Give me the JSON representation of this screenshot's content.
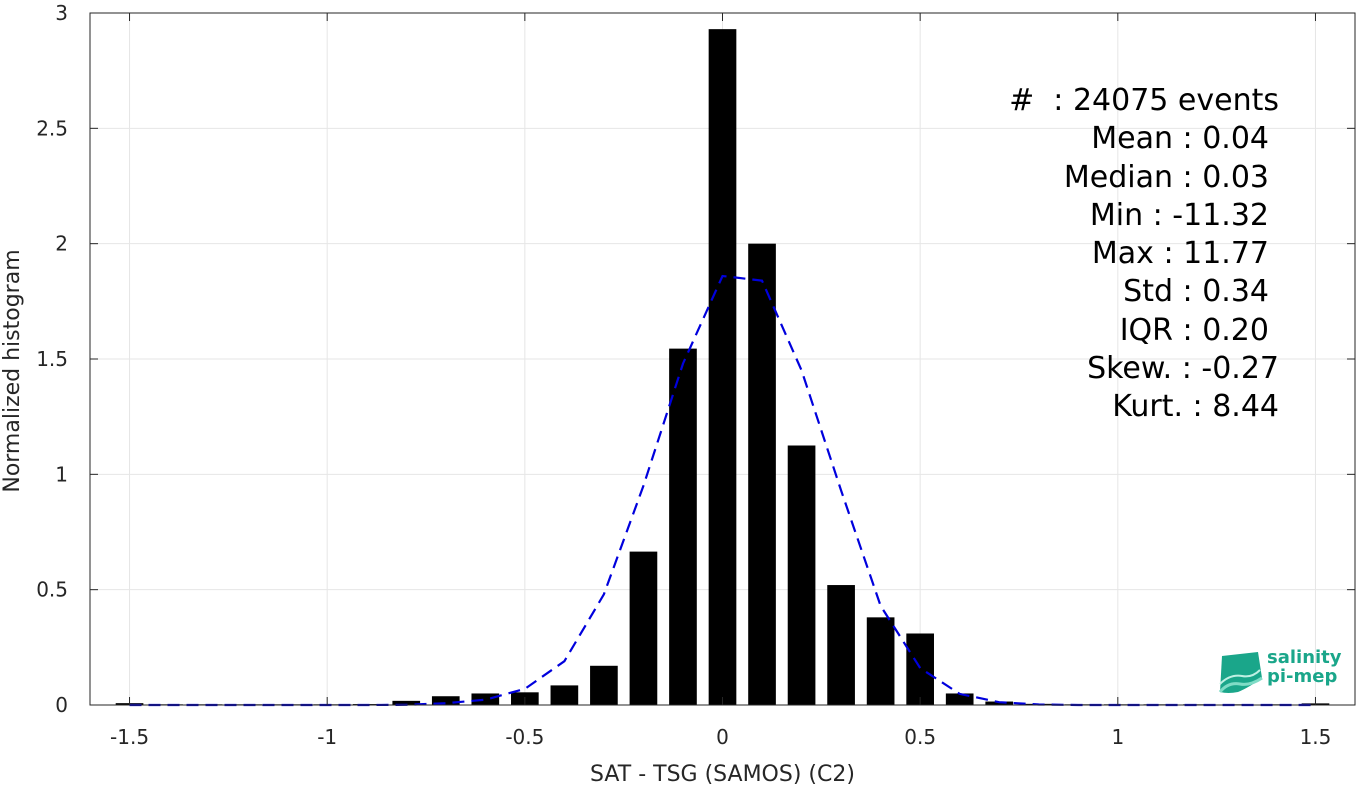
{
  "chart_data": {
    "type": "bar",
    "xlabel": "SAT - TSG (SAMOS) (C2)",
    "ylabel": "Normalized histogram",
    "xlim": [
      -1.6,
      1.6
    ],
    "ylim": [
      0,
      3
    ],
    "xticks": [
      -1.5,
      -1,
      -0.5,
      0,
      0.5,
      1,
      1.5
    ],
    "xtick_labels": [
      "-1.5",
      "-1",
      "-0.5",
      "0",
      "0.5",
      "1",
      "1.5"
    ],
    "yticks": [
      0,
      0.5,
      1,
      1.5,
      2,
      2.5,
      3
    ],
    "ytick_labels": [
      "0",
      "0.5",
      "1",
      "1.5",
      "2",
      "2.5",
      "3"
    ],
    "grid": true,
    "bar_color": "#000000",
    "bar_width": 0.07,
    "bars": {
      "x": [
        -1.5,
        -1.4,
        -1.3,
        -1.2,
        -1.1,
        -1.0,
        -0.9,
        -0.8,
        -0.7,
        -0.6,
        -0.5,
        -0.4,
        -0.3,
        -0.2,
        -0.1,
        0.0,
        0.1,
        0.2,
        0.3,
        0.4,
        0.5,
        0.6,
        0.7,
        0.8,
        0.9,
        1.0,
        1.1,
        1.2,
        1.3,
        1.4,
        1.5
      ],
      "values": [
        0.008,
        0.003,
        0.003,
        0.003,
        0.003,
        0.003,
        0.004,
        0.018,
        0.038,
        0.05,
        0.055,
        0.085,
        0.17,
        0.665,
        1.545,
        2.93,
        2.0,
        1.125,
        0.52,
        0.38,
        0.31,
        0.05,
        0.015,
        0.005,
        0.003,
        0.003,
        0.003,
        0.003,
        0.003,
        0.003,
        0.007
      ]
    },
    "fit": {
      "style": "dashed",
      "color": "#0000dd",
      "x": [
        -1.5,
        -1.4,
        -1.3,
        -1.2,
        -1.1,
        -1.0,
        -0.9,
        -0.8,
        -0.7,
        -0.6,
        -0.5,
        -0.4,
        -0.3,
        -0.2,
        -0.1,
        0.0,
        0.1,
        0.2,
        0.3,
        0.4,
        0.5,
        0.6,
        0.7,
        0.8,
        0.9,
        1.0,
        1.1,
        1.2,
        1.3,
        1.4,
        1.5
      ],
      "y": [
        0,
        0,
        0,
        0,
        0,
        0,
        0,
        0.001,
        0.008,
        0.023,
        0.07,
        0.19,
        0.48,
        0.95,
        1.48,
        1.86,
        1.84,
        1.45,
        0.93,
        0.43,
        0.16,
        0.048,
        0.012,
        0.002,
        0,
        0,
        0,
        0,
        0,
        0,
        0
      ]
    },
    "annotations": [
      "#  : 24075 events",
      "Mean : 0.04",
      "Median : 0.03",
      "Min : -11.32",
      "Max : 11.77",
      "Std : 0.34",
      "IQR : 0.20",
      "Skew. : -0.27",
      "Kurt. : 8.44"
    ]
  },
  "logo": {
    "line1": "salinity",
    "line2": "pi-mep",
    "color": "#1aa68a"
  }
}
